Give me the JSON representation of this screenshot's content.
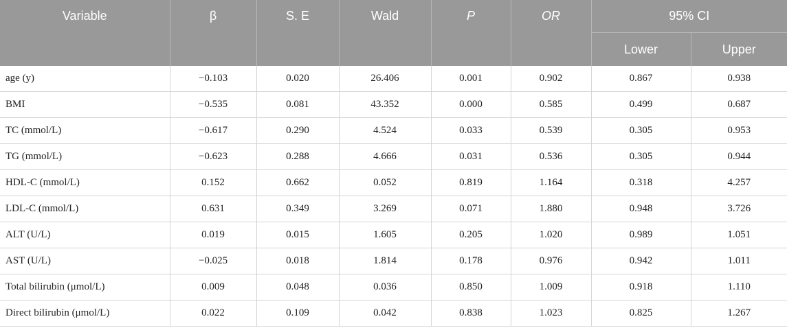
{
  "header": {
    "variable": "Variable",
    "beta": "β",
    "se": "S. E",
    "wald": "Wald",
    "p": "P",
    "or": "OR",
    "ci": "95% CI",
    "lower": "Lower",
    "upper": "Upper"
  },
  "rows": [
    {
      "variable": "age (y)",
      "beta": "−0.103",
      "se": "0.020",
      "wald": "26.406",
      "p": "0.001",
      "or": "0.902",
      "lower": "0.867",
      "upper": "0.938"
    },
    {
      "variable": "BMI",
      "beta": "−0.535",
      "se": "0.081",
      "wald": "43.352",
      "p": "0.000",
      "or": "0.585",
      "lower": "0.499",
      "upper": "0.687"
    },
    {
      "variable": "TC (mmol/L)",
      "beta": "−0.617",
      "se": "0.290",
      "wald": "4.524",
      "p": "0.033",
      "or": "0.539",
      "lower": "0.305",
      "upper": "0.953"
    },
    {
      "variable": "TG (mmol/L)",
      "beta": "−0.623",
      "se": "0.288",
      "wald": "4.666",
      "p": "0.031",
      "or": "0.536",
      "lower": "0.305",
      "upper": "0.944"
    },
    {
      "variable": "HDL-C (mmol/L)",
      "beta": "0.152",
      "se": "0.662",
      "wald": "0.052",
      "p": "0.819",
      "or": "1.164",
      "lower": "0.318",
      "upper": "4.257"
    },
    {
      "variable": "LDL-C (mmol/L)",
      "beta": "0.631",
      "se": "0.349",
      "wald": "3.269",
      "p": "0.071",
      "or": "1.880",
      "lower": "0.948",
      "upper": "3.726"
    },
    {
      "variable": "ALT (U/L)",
      "beta": "0.019",
      "se": "0.015",
      "wald": "1.605",
      "p": "0.205",
      "or": "1.020",
      "lower": "0.989",
      "upper": "1.051"
    },
    {
      "variable": "AST (U/L)",
      "beta": "−0.025",
      "se": "0.018",
      "wald": "1.814",
      "p": "0.178",
      "or": "0.976",
      "lower": "0.942",
      "upper": "1.011"
    },
    {
      "variable": "Total bilirubin (μmol/L)",
      "beta": "0.009",
      "se": "0.048",
      "wald": "0.036",
      "p": "0.850",
      "or": "1.009",
      "lower": "0.918",
      "upper": "1.110"
    },
    {
      "variable": "Direct bilirubin (μmol/L)",
      "beta": "0.022",
      "se": "0.109",
      "wald": "0.042",
      "p": "0.838",
      "or": "1.023",
      "lower": "0.825",
      "upper": "1.267"
    }
  ]
}
